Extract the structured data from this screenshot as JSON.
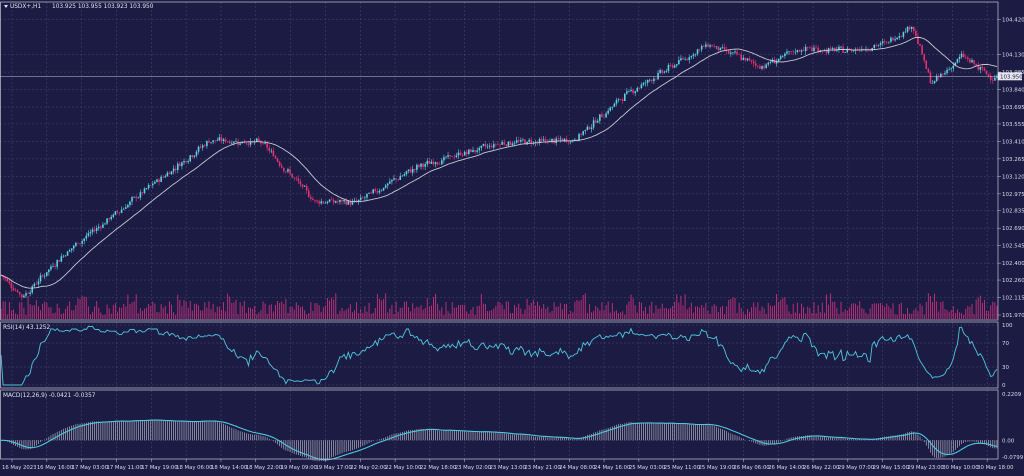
{
  "chart_data": [
    {
      "panel": "price",
      "type": "candlestick",
      "symbol": "USDX+,H1",
      "ohlc_header": "103.925 103.955 103.923 103.950",
      "current_price": "103.950",
      "indicator": "MA overlay",
      "ylim": [
        101.97,
        104.5
      ],
      "y_ticks": [
        "104.420",
        "104.130",
        "103.985",
        "103.840",
        "103.695",
        "103.555",
        "103.410",
        "103.265",
        "103.120",
        "102.975",
        "102.835",
        "102.690",
        "102.545",
        "102.400",
        "102.260",
        "102.115",
        "101.970"
      ],
      "grid": true,
      "bull_color": "#5fd3e6",
      "bear_color": "#e8326e",
      "ma_color": "#c8c8d2",
      "volume_color": "#c8327a",
      "key_points": [
        {
          "bar": 0,
          "close": 102.3
        },
        {
          "bar": 10,
          "close": 102.12
        },
        {
          "bar": 30,
          "close": 102.48
        },
        {
          "bar": 65,
          "close": 102.95
        },
        {
          "bar": 100,
          "close": 103.42
        },
        {
          "bar": 125,
          "close": 103.4
        },
        {
          "bar": 150,
          "close": 102.92
        },
        {
          "bar": 170,
          "close": 102.9
        },
        {
          "bar": 200,
          "close": 103.2
        },
        {
          "bar": 240,
          "close": 103.4
        },
        {
          "bar": 275,
          "close": 103.42
        },
        {
          "bar": 300,
          "close": 103.8
        },
        {
          "bar": 340,
          "close": 104.22
        },
        {
          "bar": 365,
          "close": 104.03
        },
        {
          "bar": 385,
          "close": 104.18
        },
        {
          "bar": 405,
          "close": 104.16
        },
        {
          "bar": 425,
          "close": 104.22
        },
        {
          "bar": 438,
          "close": 104.38
        },
        {
          "bar": 447,
          "close": 103.88
        },
        {
          "bar": 462,
          "close": 104.12
        },
        {
          "bar": 475,
          "close": 103.95
        }
      ]
    },
    {
      "panel": "rsi",
      "type": "line",
      "label": "RSI(14) 43.1252",
      "ylim": [
        0,
        100
      ],
      "y_ticks": [
        "100",
        "70",
        "30",
        "0"
      ],
      "color": "#4fc8dc"
    },
    {
      "panel": "macd",
      "type": "histogram+line",
      "label": "MACD(12,26,9) -0.0421 -0.0357",
      "ylim": [
        -0.0799,
        0.2209
      ],
      "y_ticks": [
        "0.2209",
        "0.00",
        "-0.0799"
      ],
      "line_color": "#4fc8dc",
      "hist_color": "#c8c8d2"
    }
  ],
  "x_labels": [
    "16 May 2023",
    "16 May 16:00",
    "17 May 03:00",
    "17 May 11:00",
    "17 May 19:00",
    "18 May 06:00",
    "18 May 14:00",
    "18 May 22:00",
    "19 May 09:00",
    "19 May 17:00",
    "22 May 02:00",
    "22 May 10:00",
    "22 May 18:00",
    "23 May 02:00",
    "23 May 13:00",
    "23 May 21:00",
    "24 May 08:00",
    "24 May 16:00",
    "25 May 03:00",
    "25 May 11:00",
    "25 May 19:00",
    "26 May 06:00",
    "26 May 14:00",
    "26 May 22:00",
    "29 May 07:00",
    "29 May 15:00",
    "29 May 23:00",
    "30 May 10:00",
    "30 May 18:00"
  ]
}
